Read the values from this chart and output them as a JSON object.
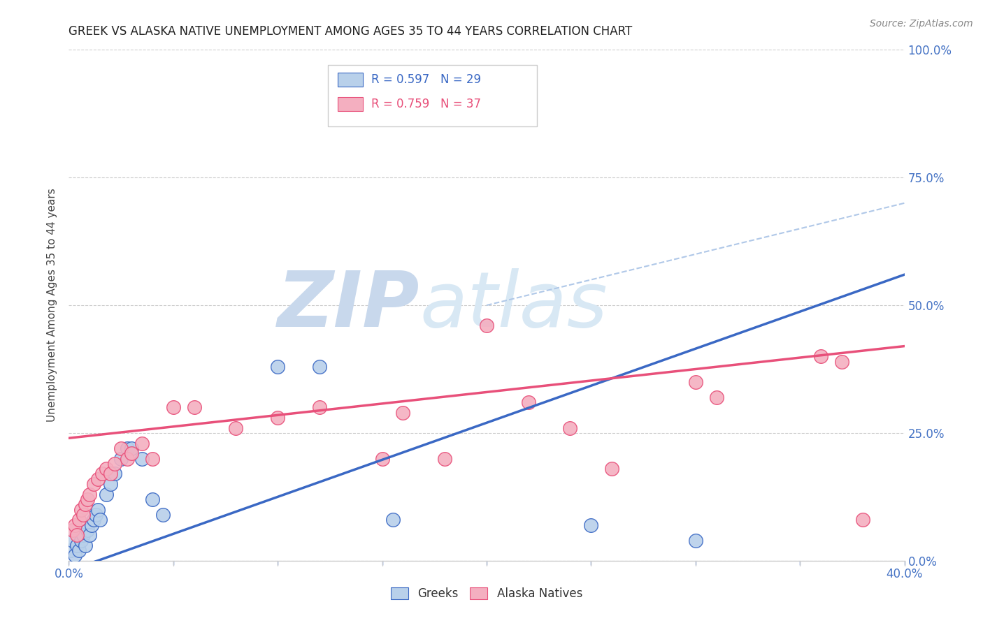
{
  "title": "GREEK VS ALASKA NATIVE UNEMPLOYMENT AMONG AGES 35 TO 44 YEARS CORRELATION CHART",
  "source": "Source: ZipAtlas.com",
  "ylabel": "Unemployment Among Ages 35 to 44 years",
  "xlim": [
    0.0,
    0.4
  ],
  "ylim": [
    0.0,
    1.0
  ],
  "xticks": [
    0.0,
    0.05,
    0.1,
    0.15,
    0.2,
    0.25,
    0.3,
    0.35,
    0.4
  ],
  "xticklabels": [
    "0.0%",
    "",
    "",
    "",
    "",
    "",
    "",
    "",
    "40.0%"
  ],
  "yticks": [
    0.0,
    0.25,
    0.5,
    0.75,
    1.0
  ],
  "yticklabels": [
    "0.0%",
    "25.0%",
    "50.0%",
    "75.0%",
    "100.0%"
  ],
  "greeks_R": 0.597,
  "greeks_N": 29,
  "alaska_R": 0.759,
  "alaska_N": 37,
  "greeks_color": "#b8d0ea",
  "alaska_color": "#f4afc0",
  "greeks_line_color": "#3a68c4",
  "alaska_line_color": "#e8507a",
  "diagonal_color": "#b0c8e8",
  "watermark_zip": "ZIP",
  "watermark_atlas": "atlas",
  "watermark_color_zip": "#c8d8ec",
  "watermark_color_atlas": "#c8d8ec",
  "greeks_x": [
    0.001,
    0.002,
    0.003,
    0.004,
    0.005,
    0.006,
    0.007,
    0.008,
    0.009,
    0.01,
    0.011,
    0.012,
    0.013,
    0.014,
    0.015,
    0.018,
    0.02,
    0.022,
    0.025,
    0.028,
    0.03,
    0.035,
    0.04,
    0.045,
    0.1,
    0.12,
    0.155,
    0.25,
    0.3
  ],
  "greeks_y": [
    0.02,
    0.04,
    0.01,
    0.03,
    0.02,
    0.04,
    0.05,
    0.03,
    0.06,
    0.05,
    0.07,
    0.08,
    0.09,
    0.1,
    0.08,
    0.13,
    0.15,
    0.17,
    0.2,
    0.22,
    0.22,
    0.2,
    0.12,
    0.09,
    0.38,
    0.38,
    0.08,
    0.07,
    0.04
  ],
  "alaska_x": [
    0.002,
    0.003,
    0.004,
    0.005,
    0.006,
    0.007,
    0.008,
    0.009,
    0.01,
    0.012,
    0.014,
    0.016,
    0.018,
    0.02,
    0.022,
    0.025,
    0.028,
    0.03,
    0.035,
    0.04,
    0.05,
    0.06,
    0.08,
    0.1,
    0.12,
    0.15,
    0.16,
    0.18,
    0.2,
    0.22,
    0.24,
    0.26,
    0.3,
    0.31,
    0.36,
    0.37,
    0.38
  ],
  "alaska_y": [
    0.06,
    0.07,
    0.05,
    0.08,
    0.1,
    0.09,
    0.11,
    0.12,
    0.13,
    0.15,
    0.16,
    0.17,
    0.18,
    0.17,
    0.19,
    0.22,
    0.2,
    0.21,
    0.23,
    0.2,
    0.3,
    0.3,
    0.26,
    0.28,
    0.3,
    0.2,
    0.29,
    0.2,
    0.46,
    0.31,
    0.26,
    0.18,
    0.35,
    0.32,
    0.4,
    0.39,
    0.08
  ],
  "greek_line_x0": 0.0,
  "greek_line_y0": -0.02,
  "greek_line_x1": 0.4,
  "greek_line_y1": 0.56,
  "alaska_line_x0": 0.0,
  "alaska_line_y0": 0.24,
  "alaska_line_x1": 0.4,
  "alaska_line_y1": 0.42,
  "diag_line_x0": 0.2,
  "diag_line_y0": 0.5,
  "diag_line_x1": 0.4,
  "diag_line_y1": 0.7
}
